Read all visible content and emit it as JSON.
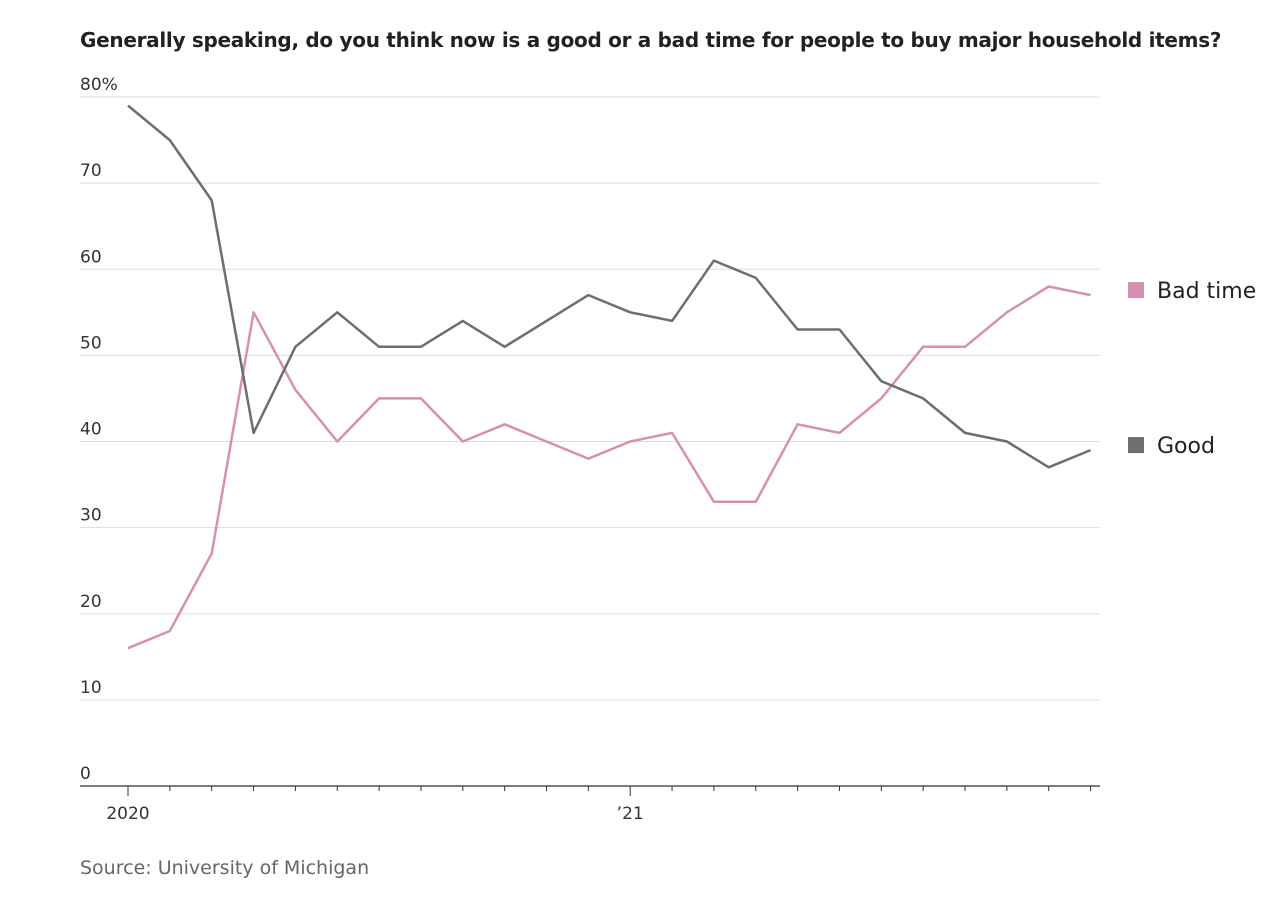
{
  "chart_data": {
    "type": "line",
    "title": "Generally speaking, do you think now is a good or a bad time for people to buy major household items?",
    "source": "Source: University of Michigan",
    "x": [
      "2020-01",
      "2020-02",
      "2020-03",
      "2020-04",
      "2020-05",
      "2020-06",
      "2020-07",
      "2020-08",
      "2020-09",
      "2020-10",
      "2020-11",
      "2020-12",
      "2021-01",
      "2021-02",
      "2021-03",
      "2021-04",
      "2021-05",
      "2021-06",
      "2021-07",
      "2021-08",
      "2021-09",
      "2021-10",
      "2021-11",
      "2021-12"
    ],
    "x_tick_labels": [
      {
        "at": "2020-01",
        "label": "2020"
      },
      {
        "at": "2021-01",
        "label": "’21"
      }
    ],
    "ylim": [
      0,
      80
    ],
    "y_ticks": [
      0,
      10,
      20,
      30,
      40,
      50,
      60,
      70,
      80
    ],
    "y_tick_labels": [
      "0",
      "10",
      "20",
      "30",
      "40",
      "50",
      "60",
      "70",
      "80%"
    ],
    "grid": true,
    "legend_placement": "right, at line ends",
    "series": [
      {
        "name": "Bad time",
        "color": "#d88fb4",
        "values": [
          16,
          18,
          27,
          55,
          46,
          40,
          45,
          45,
          40,
          42,
          40,
          38,
          40,
          41,
          33,
          33,
          42,
          41,
          45,
          51,
          51,
          55,
          58,
          57
        ]
      },
      {
        "name": "Good",
        "color": "#6e6e6e",
        "values": [
          79,
          75,
          68,
          41,
          51,
          55,
          51,
          51,
          54,
          51,
          54,
          57,
          55,
          54,
          61,
          59,
          53,
          53,
          47,
          45,
          41,
          40,
          37,
          39
        ]
      }
    ]
  }
}
